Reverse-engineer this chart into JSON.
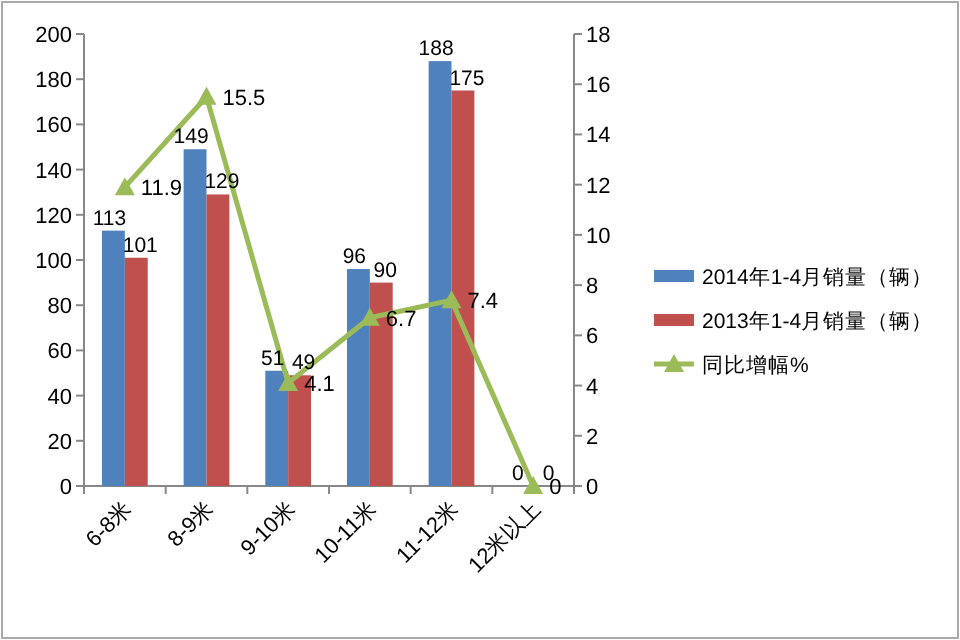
{
  "chart_data": {
    "type": "bar",
    "categories": [
      "6-8米",
      "8-9米",
      "9-10米",
      "10-11米",
      "11-12米",
      "12米以上"
    ],
    "series": [
      {
        "name": "2014年1-4月销量（辆）",
        "color": "#4f81bd",
        "values": [
          113,
          149,
          51,
          96,
          188,
          0
        ]
      },
      {
        "name": "2013年1-4月销量（辆）",
        "color": "#c0504d",
        "values": [
          101,
          129,
          49,
          90,
          175,
          0
        ]
      },
      {
        "name": "同比增幅%",
        "type": "line",
        "axis": "y2",
        "color": "#9bbb59",
        "marker": "triangle",
        "values": [
          11.9,
          15.5,
          4.1,
          6.7,
          7.4,
          0
        ]
      }
    ],
    "ylim": [
      0,
      200
    ],
    "yticks": [
      0,
      20,
      40,
      60,
      80,
      100,
      120,
      140,
      160,
      180,
      200
    ],
    "y2lim": [
      0,
      18
    ],
    "y2ticks": [
      0,
      2,
      4,
      6,
      8,
      10,
      12,
      14,
      16,
      18
    ],
    "data_labels": true,
    "legend": "right",
    "grid": false
  }
}
